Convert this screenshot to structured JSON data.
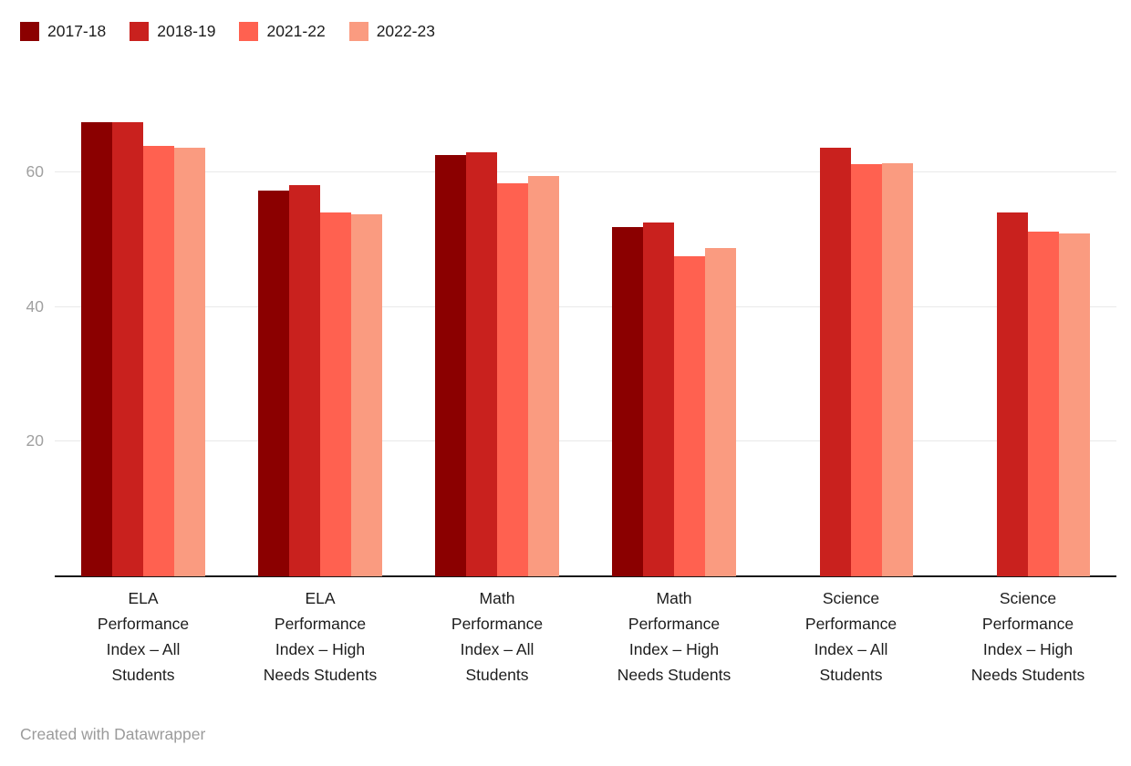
{
  "chart_data": {
    "type": "bar",
    "title": "",
    "xlabel": "",
    "ylabel": "",
    "categories": [
      "ELA Performance Index – All Students",
      "ELA Performance Index – High Needs Students",
      "Math Performance Index – All Students",
      "Math Performance Index – High Needs Students",
      "Science Performance Index – All Students",
      "Science Performance Index – High Needs Students"
    ],
    "series": [
      {
        "name": "2017-18",
        "color": "#8B0000",
        "values": [
          67.5,
          57.3,
          62.6,
          51.9,
          null,
          null
        ]
      },
      {
        "name": "2018-19",
        "color": "#C9211E",
        "values": [
          67.5,
          58.1,
          63.0,
          52.6,
          63.7,
          54.0
        ]
      },
      {
        "name": "2021-22",
        "color": "#FF6150",
        "values": [
          64.0,
          54.0,
          58.4,
          47.5,
          61.2,
          51.2
        ]
      },
      {
        "name": "2022-23",
        "color": "#FA9B80",
        "values": [
          63.7,
          53.8,
          59.5,
          48.8,
          61.4,
          51.0
        ]
      }
    ],
    "ylim": [
      0,
      68
    ],
    "yticks": [
      20,
      40,
      60
    ],
    "grid": true,
    "legend_position": "top-left"
  },
  "footer": {
    "attribution": "Created with Datawrapper"
  },
  "colors": {
    "background": "#ffffff",
    "grid": "#e9e9e9",
    "axis_line": "#191919",
    "tick_label": "#a0a0a0",
    "category_label": "#1d1d1d"
  }
}
